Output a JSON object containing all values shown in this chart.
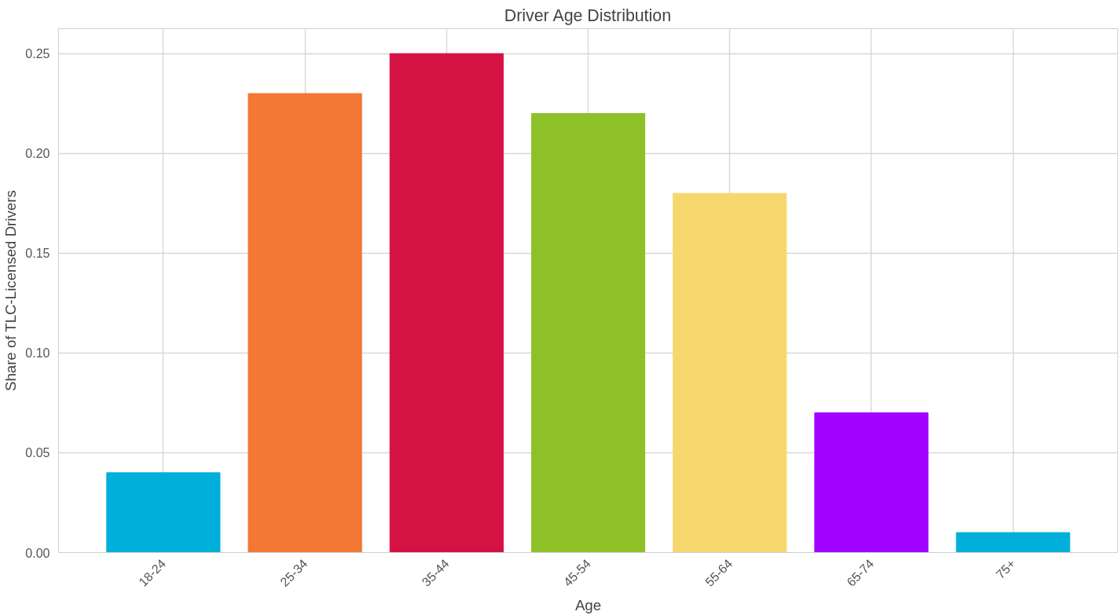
{
  "chart_data": {
    "type": "bar",
    "title": "Driver Age Distribution",
    "xlabel": "Age",
    "ylabel": "Share of TLC-Licensed Drivers",
    "categories": [
      "18-24",
      "25-34",
      "35-44",
      "45-54",
      "55-64",
      "65-74",
      "75+"
    ],
    "values": [
      0.04,
      0.23,
      0.25,
      0.22,
      0.18,
      0.07,
      0.01
    ],
    "colors": [
      "#00b0da",
      "#f37735",
      "#d41243",
      "#8ec127",
      "#f5d76e",
      "#a200ff",
      "#00b0da"
    ],
    "ylim": [
      0,
      0.2625
    ],
    "yticks": [
      {
        "value": 0,
        "label": "0.00"
      },
      {
        "value": 0.05,
        "label": "0.05"
      },
      {
        "value": 0.1,
        "label": "0.10"
      },
      {
        "value": 0.15,
        "label": "0.15"
      },
      {
        "value": 0.2,
        "label": "0.20"
      },
      {
        "value": 0.25,
        "label": "0.25"
      }
    ],
    "grid": true
  }
}
